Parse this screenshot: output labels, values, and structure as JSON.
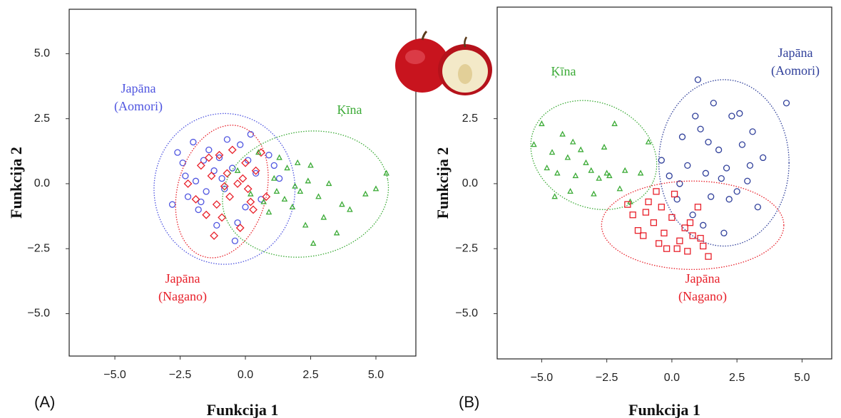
{
  "chart_data": [
    {
      "type": "scatter",
      "panel_label": "(A)",
      "x_label": "Funkcija 1",
      "y_label": "Funkcija 2",
      "xlim": [
        -6.75,
        6.53
      ],
      "ylim": [
        -6.63,
        6.71
      ],
      "xticks": [
        {
          "value": -5,
          "label": "−5.0"
        },
        {
          "value": -2.5,
          "label": "−2.5"
        },
        {
          "value": 0,
          "label": "0.0"
        },
        {
          "value": 2.5,
          "label": "2.5"
        },
        {
          "value": 5,
          "label": "5.0"
        }
      ],
      "yticks": [
        {
          "value": -5,
          "label": "−5.0"
        },
        {
          "value": -2.5,
          "label": "−2.5"
        },
        {
          "value": 0,
          "label": "0.0"
        },
        {
          "value": 2.5,
          "label": "2.5"
        },
        {
          "value": 5,
          "label": "5.0"
        }
      ],
      "series": [
        {
          "label": [
            "Japāna",
            "(Aomori)"
          ],
          "marker": "circle",
          "color": "#4f55e0",
          "x": [
            -2.8,
            -2.6,
            -2.4,
            -2.3,
            -2.2,
            -2.0,
            -1.9,
            -1.8,
            -1.6,
            -1.5,
            -1.4,
            -1.2,
            -1.1,
            -1.0,
            -0.8,
            -0.7,
            -0.5,
            -0.4,
            -0.2,
            0.0,
            0.2,
            0.4,
            0.6,
            0.9,
            1.1,
            1.3,
            -1.7,
            -0.9,
            -0.3,
            0.1
          ],
          "values": [
            -0.8,
            1.2,
            0.8,
            0.3,
            -0.5,
            1.6,
            0.1,
            -1.0,
            0.9,
            -0.3,
            1.3,
            0.5,
            -1.6,
            1.0,
            -0.2,
            1.7,
            0.6,
            -2.2,
            1.5,
            -0.9,
            1.9,
            0.4,
            -0.6,
            1.1,
            0.7,
            0.2,
            -0.7,
            0.2,
            -1.5,
            0.9
          ],
          "ellipse": {
            "cx": -0.8,
            "cy": -0.2,
            "rx": 2.7,
            "ry": 2.9,
            "angle": 0
          }
        },
        {
          "label": [
            "Japāna",
            "(Nagano)"
          ],
          "marker": "diamond",
          "color": "#e8202a",
          "x": [
            -2.2,
            -1.9,
            -1.7,
            -1.5,
            -1.3,
            -1.1,
            -1.0,
            -0.9,
            -0.7,
            -0.6,
            -0.5,
            -0.3,
            -0.2,
            0.0,
            0.1,
            0.3,
            0.4,
            0.6,
            0.8,
            -1.4,
            -0.8,
            -0.1,
            0.2,
            -1.2
          ],
          "values": [
            0.0,
            -0.6,
            0.7,
            -1.2,
            0.3,
            -0.8,
            1.1,
            -1.3,
            0.4,
            -0.5,
            1.3,
            0.0,
            -1.7,
            0.8,
            -0.2,
            -1.0,
            0.5,
            1.2,
            -0.5,
            1.0,
            -0.1,
            0.2,
            -0.7,
            -2.0
          ],
          "ellipse": {
            "cx": -0.9,
            "cy": -0.3,
            "rx": 1.7,
            "ry": 2.6,
            "angle": -15
          }
        },
        {
          "label": [
            "Ķīna"
          ],
          "marker": "triangle",
          "color": "#3aaa35",
          "x": [
            -0.3,
            0.2,
            0.5,
            0.9,
            1.1,
            1.3,
            1.5,
            1.6,
            1.8,
            2.0,
            2.1,
            2.3,
            2.5,
            2.6,
            2.8,
            3.0,
            3.2,
            3.5,
            3.7,
            4.0,
            4.6,
            5.0,
            5.4,
            1.2,
            1.9,
            2.4,
            0.7
          ],
          "values": [
            0.5,
            -0.4,
            1.2,
            -1.1,
            0.2,
            1.0,
            -0.6,
            0.6,
            -0.9,
            0.8,
            -0.3,
            -1.6,
            0.7,
            -2.3,
            -0.5,
            -1.3,
            0.0,
            -1.9,
            -0.8,
            -1.0,
            -0.4,
            -0.2,
            0.4,
            -0.3,
            -0.1,
            0.1,
            -0.7
          ],
          "ellipse": {
            "cx": 2.3,
            "cy": -0.4,
            "rx": 3.2,
            "ry": 2.4,
            "angle": 10
          }
        }
      ]
    },
    {
      "type": "scatter",
      "panel_label": "(B)",
      "x_label": "Funkcija 1",
      "y_label": "Funkcija 2",
      "xlim": [
        -6.71,
        6.14
      ],
      "ylim": [
        -6.74,
        6.79
      ],
      "xticks": [
        {
          "value": -5,
          "label": "−5.0"
        },
        {
          "value": -2.5,
          "label": "−2.5"
        },
        {
          "value": 0,
          "label": "0.0"
        },
        {
          "value": 2.5,
          "label": "2.5"
        },
        {
          "value": 5,
          "label": "5.0"
        }
      ],
      "yticks": [
        {
          "value": -5,
          "label": "−5.0"
        },
        {
          "value": -2.5,
          "label": "−2.5"
        },
        {
          "value": 0,
          "label": "0.0"
        },
        {
          "value": 2.5,
          "label": "2.5"
        }
      ],
      "series": [
        {
          "label": [
            "Ķīna"
          ],
          "marker": "triangle",
          "color": "#3aaa35",
          "x": [
            -5.3,
            -5.0,
            -4.8,
            -4.6,
            -4.4,
            -4.2,
            -4.0,
            -3.9,
            -3.7,
            -3.5,
            -3.3,
            -3.1,
            -3.0,
            -2.8,
            -2.6,
            -2.4,
            -2.2,
            -2.0,
            -1.8,
            -1.6,
            -1.2,
            -0.9,
            -4.5,
            -3.8,
            -2.5
          ],
          "values": [
            1.5,
            2.3,
            0.6,
            1.2,
            0.4,
            1.9,
            1.0,
            -0.3,
            0.3,
            1.3,
            0.8,
            0.5,
            -0.4,
            0.2,
            1.4,
            0.3,
            2.3,
            -0.2,
            0.5,
            -0.7,
            0.4,
            1.6,
            -0.5,
            1.6,
            0.4
          ],
          "ellipse": {
            "cx": -3.0,
            "cy": 1.1,
            "rx": 2.5,
            "ry": 2.0,
            "angle": -25
          }
        },
        {
          "label": [
            "Japāna",
            "(Aomori)"
          ],
          "marker": "circle",
          "color": "#2f3f9a",
          "x": [
            -0.4,
            -0.1,
            0.2,
            0.4,
            0.6,
            0.8,
            1.0,
            1.1,
            1.3,
            1.5,
            1.6,
            1.8,
            2.0,
            2.1,
            2.3,
            2.5,
            2.7,
            2.9,
            3.1,
            3.3,
            3.5,
            4.4,
            1.2,
            1.9,
            2.6,
            0.9,
            1.4,
            2.2,
            3.0,
            0.3
          ],
          "values": [
            0.9,
            0.3,
            -0.6,
            1.8,
            0.7,
            -1.2,
            4.0,
            2.1,
            0.4,
            -0.5,
            3.1,
            1.3,
            -1.9,
            0.6,
            2.6,
            -0.3,
            1.5,
            0.1,
            2.0,
            -0.9,
            1.0,
            3.1,
            -1.6,
            0.2,
            2.7,
            2.6,
            1.6,
            -0.6,
            0.7,
            0.0
          ],
          "ellipse": {
            "cx": 2.0,
            "cy": 0.8,
            "rx": 2.5,
            "ry": 3.2,
            "angle": 0
          }
        },
        {
          "label": [
            "Japāna",
            "(Nagano)"
          ],
          "marker": "square",
          "color": "#e8202a",
          "x": [
            -1.7,
            -1.5,
            -1.3,
            -1.1,
            -0.9,
            -0.7,
            -0.5,
            -0.4,
            -0.2,
            0.0,
            0.1,
            0.3,
            0.5,
            0.6,
            0.8,
            1.0,
            1.2,
            1.4,
            -1.0,
            -0.3,
            0.2,
            0.7,
            1.1,
            -0.6
          ],
          "values": [
            -0.8,
            -1.2,
            -1.8,
            -2.0,
            -0.7,
            -1.5,
            -2.3,
            -0.9,
            -2.5,
            -1.3,
            -0.4,
            -2.2,
            -1.7,
            -2.6,
            -2.0,
            -0.9,
            -2.4,
            -2.8,
            -1.1,
            -1.9,
            -2.5,
            -1.5,
            -2.1,
            -0.3
          ],
          "ellipse": {
            "cx": 0.8,
            "cy": -1.6,
            "rx": 3.5,
            "ry": 1.7,
            "angle": 0
          }
        }
      ]
    }
  ]
}
